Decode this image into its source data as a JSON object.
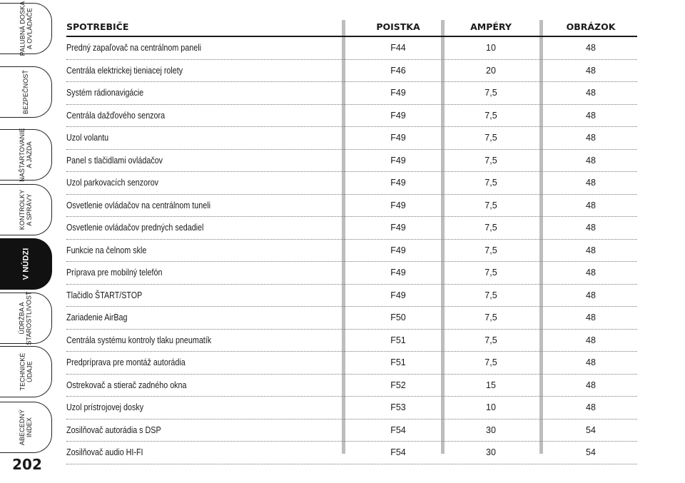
{
  "sidebar": {
    "tabs": [
      {
        "label": "PALUBNÁ DOSKA\nA OVLÁDAČE",
        "active": false
      },
      {
        "label": "BEZPEČNOSŤ",
        "active": false
      },
      {
        "label": "NAŠTARTOVANIE\nA JAZDA",
        "active": false
      },
      {
        "label": "KONTROLKY\nA SPRÁVY",
        "active": false
      },
      {
        "label": "V NÚDZI",
        "active": true
      },
      {
        "label": "ÚDRŽBA A\nSTAROSTLIVOSŤ",
        "active": false
      },
      {
        "label": "TECHNICKÉ\nÚDAJE",
        "active": false
      },
      {
        "label": "ABECEDNÝ\nINDEX",
        "active": false
      }
    ],
    "page_number": "202"
  },
  "table": {
    "headers": {
      "name": "SPOTREBIČE",
      "fuse": "POISTKA",
      "amps": "AMPÉRY",
      "figure": "OBRÁZOK"
    },
    "rows": [
      {
        "name": "Predný zapaľovač na centrálnom paneli",
        "fuse": "F44",
        "amps": "10",
        "figure": "48"
      },
      {
        "name": "Centrála elektrickej tieniacej rolety",
        "fuse": "F46",
        "amps": "20",
        "figure": "48"
      },
      {
        "name": "Systém rádionavigácie",
        "fuse": "F49",
        "amps": "7,5",
        "figure": "48"
      },
      {
        "name": "Centrála dažďového senzora",
        "fuse": "F49",
        "amps": "7,5",
        "figure": "48"
      },
      {
        "name": "Uzol volantu",
        "fuse": "F49",
        "amps": "7,5",
        "figure": "48"
      },
      {
        "name": "Panel s tlačidlami ovládačov",
        "fuse": "F49",
        "amps": "7,5",
        "figure": "48"
      },
      {
        "name": "Uzol parkovacích senzorov",
        "fuse": "F49",
        "amps": "7,5",
        "figure": "48"
      },
      {
        "name": "Osvetlenie ovládačov na centrálnom tuneli",
        "fuse": "F49",
        "amps": "7,5",
        "figure": "48"
      },
      {
        "name": "Osvetlenie ovládačov predných sedadiel",
        "fuse": "F49",
        "amps": "7,5",
        "figure": "48"
      },
      {
        "name": "Funkcie na čelnom skle",
        "fuse": "F49",
        "amps": "7,5",
        "figure": "48"
      },
      {
        "name": "Príprava pre mobilný telefón",
        "fuse": "F49",
        "amps": "7,5",
        "figure": "48"
      },
      {
        "name": "Tlačidlo ŠTART/STOP",
        "fuse": "F49",
        "amps": "7,5",
        "figure": "48"
      },
      {
        "name": "Zariadenie AirBag",
        "fuse": "F50",
        "amps": "7,5",
        "figure": "48"
      },
      {
        "name": "Centrála systému kontroly tlaku pneumatík",
        "fuse": "F51",
        "amps": "7,5",
        "figure": "48"
      },
      {
        "name": "Predpríprava pre montáž autorádia",
        "fuse": "F51",
        "amps": "7,5",
        "figure": "48"
      },
      {
        "name": "Ostrekovač a stierač zadného okna",
        "fuse": "F52",
        "amps": "15",
        "figure": "48"
      },
      {
        "name": "Uzol prístrojovej dosky",
        "fuse": "F53",
        "amps": "10",
        "figure": "48"
      },
      {
        "name": "Zosilňovač autorádia s DSP",
        "fuse": "F54",
        "amps": "30",
        "figure": "54"
      },
      {
        "name": "Zosilňovač audio HI-FI",
        "fuse": "F54",
        "amps": "30",
        "figure": "54"
      }
    ]
  }
}
